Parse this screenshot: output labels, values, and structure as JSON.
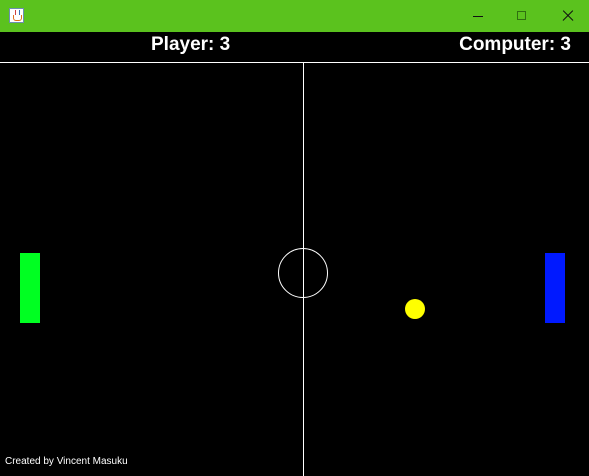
{
  "window": {
    "app_icon": "java-cup-icon",
    "titlebar_color": "#5bc21e",
    "controls": {
      "minimize": "minimize-icon",
      "maximize": "maximize-icon",
      "close": "close-icon"
    }
  },
  "scoreboard": {
    "player_label": "Player: 3",
    "computer_label": "Computer: 3"
  },
  "court": {
    "background_color": "#000000",
    "line_color": "#ffffff",
    "player_paddle_color": "#00ff22",
    "computer_paddle_color": "#0019ff",
    "ball_color": "#ffff00"
  },
  "footer": {
    "credit": "Created by Vincent Masuku"
  }
}
